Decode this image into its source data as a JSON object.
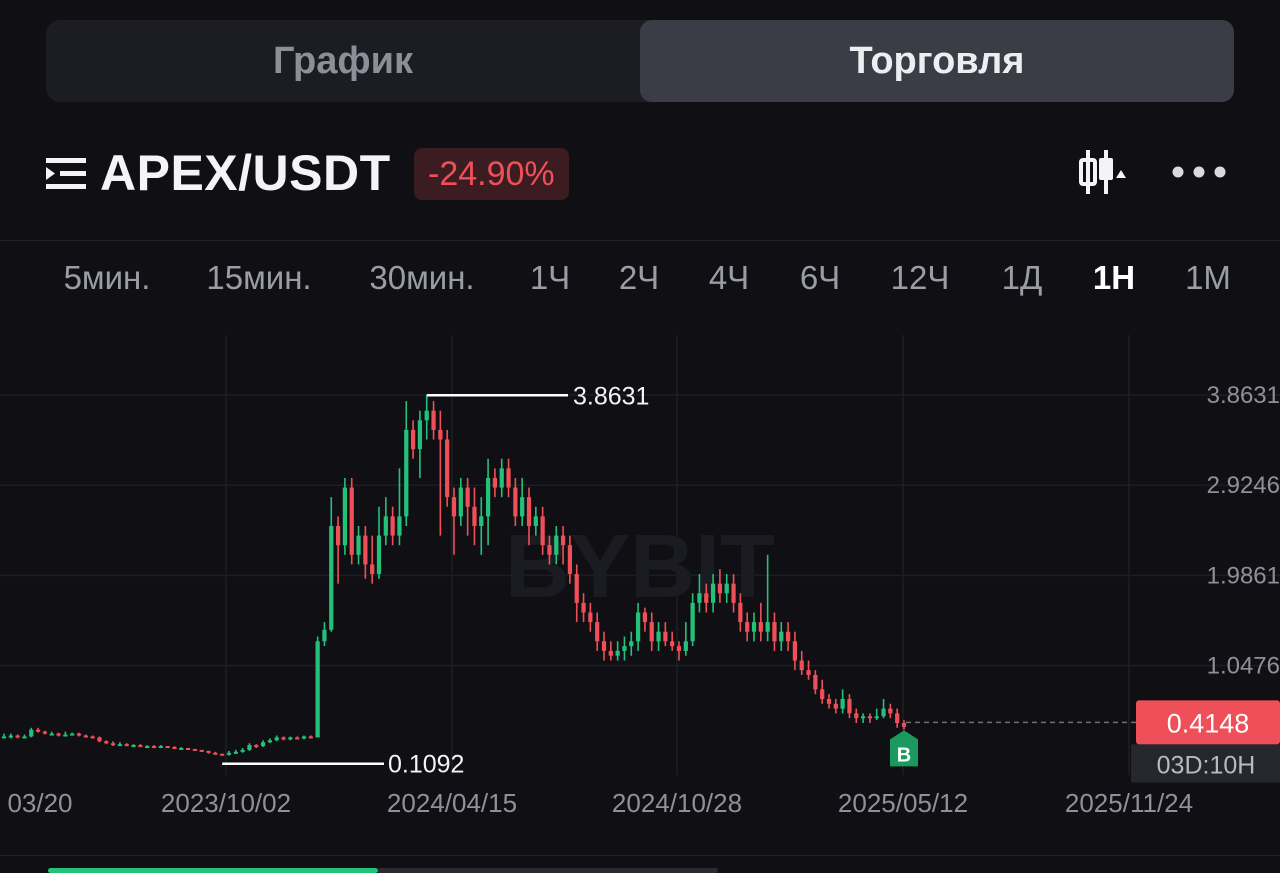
{
  "tabs": [
    {
      "label": "График",
      "active": false
    },
    {
      "label": "Торговля",
      "active": true
    }
  ],
  "header": {
    "pair": "APEX/USDT",
    "change": "-24.90%",
    "icons": [
      "list-menu-icon",
      "candlestick-icon",
      "more-icon"
    ]
  },
  "timeframes": [
    {
      "label": "5мин.",
      "active": false
    },
    {
      "label": "15мин.",
      "active": false
    },
    {
      "label": "30мин.",
      "active": false
    },
    {
      "label": "1Ч",
      "active": false
    },
    {
      "label": "2Ч",
      "active": false
    },
    {
      "label": "4Ч",
      "active": false
    },
    {
      "label": "6Ч",
      "active": false
    },
    {
      "label": "12Ч",
      "active": false
    },
    {
      "label": "1Д",
      "active": false
    },
    {
      "label": "1Н",
      "active": true
    },
    {
      "label": "1М",
      "active": false
    }
  ],
  "chart_data": {
    "type": "candlestick",
    "watermark": "BYBIT",
    "y_ticks": [
      "3.8631",
      "2.9246",
      "1.9861",
      "1.0476"
    ],
    "ylim": [
      0.0,
      4.4
    ],
    "x_ticks": [
      "03/20",
      "2023/10/02",
      "2024/04/15",
      "2024/10/28",
      "2025/05/12",
      "2025/11/24"
    ],
    "high_marker": "3.8631",
    "low_marker": "0.1092",
    "current_price": "0.4148",
    "countdown": "03D:10H",
    "buy_marker": "B",
    "up_color": "#23c17a",
    "down_color": "#ef4f58",
    "candles": [
      [
        0.31,
        0.31,
        0.34,
        0.3
      ],
      [
        0.31,
        0.32,
        0.34,
        0.29
      ],
      [
        0.32,
        0.3,
        0.33,
        0.29
      ],
      [
        0.3,
        0.31,
        0.33,
        0.29
      ],
      [
        0.31,
        0.38,
        0.4,
        0.3
      ],
      [
        0.38,
        0.36,
        0.4,
        0.35
      ],
      [
        0.36,
        0.34,
        0.37,
        0.33
      ],
      [
        0.34,
        0.34,
        0.36,
        0.32
      ],
      [
        0.34,
        0.32,
        0.35,
        0.31
      ],
      [
        0.32,
        0.33,
        0.36,
        0.31
      ],
      [
        0.33,
        0.34,
        0.35,
        0.32
      ],
      [
        0.34,
        0.32,
        0.35,
        0.31
      ],
      [
        0.32,
        0.31,
        0.33,
        0.3
      ],
      [
        0.31,
        0.3,
        0.32,
        0.29
      ],
      [
        0.3,
        0.26,
        0.31,
        0.25
      ],
      [
        0.26,
        0.24,
        0.27,
        0.23
      ],
      [
        0.24,
        0.22,
        0.26,
        0.21
      ],
      [
        0.22,
        0.23,
        0.25,
        0.21
      ],
      [
        0.23,
        0.22,
        0.24,
        0.21
      ],
      [
        0.22,
        0.22,
        0.23,
        0.2
      ],
      [
        0.22,
        0.21,
        0.23,
        0.2
      ],
      [
        0.21,
        0.21,
        0.22,
        0.2
      ],
      [
        0.21,
        0.2,
        0.22,
        0.19
      ],
      [
        0.2,
        0.21,
        0.22,
        0.19
      ],
      [
        0.21,
        0.2,
        0.21,
        0.19
      ],
      [
        0.2,
        0.19,
        0.21,
        0.18
      ],
      [
        0.19,
        0.19,
        0.2,
        0.18
      ],
      [
        0.19,
        0.18,
        0.19,
        0.17
      ],
      [
        0.18,
        0.17,
        0.18,
        0.16
      ],
      [
        0.17,
        0.16,
        0.17,
        0.15
      ],
      [
        0.16,
        0.14,
        0.16,
        0.13
      ],
      [
        0.14,
        0.13,
        0.15,
        0.12
      ],
      [
        0.13,
        0.12,
        0.13,
        0.11
      ],
      [
        0.12,
        0.14,
        0.16,
        0.11
      ],
      [
        0.14,
        0.15,
        0.17,
        0.13
      ],
      [
        0.15,
        0.17,
        0.19,
        0.14
      ],
      [
        0.17,
        0.22,
        0.24,
        0.16
      ],
      [
        0.22,
        0.21,
        0.23,
        0.19
      ],
      [
        0.21,
        0.25,
        0.27,
        0.2
      ],
      [
        0.25,
        0.27,
        0.29,
        0.24
      ],
      [
        0.27,
        0.3,
        0.32,
        0.26
      ],
      [
        0.3,
        0.28,
        0.31,
        0.27
      ],
      [
        0.28,
        0.3,
        0.31,
        0.27
      ],
      [
        0.3,
        0.29,
        0.31,
        0.28
      ],
      [
        0.29,
        0.31,
        0.32,
        0.28
      ],
      [
        0.31,
        0.3,
        0.32,
        0.29
      ],
      [
        0.3,
        1.3,
        1.35,
        0.3
      ],
      [
        1.3,
        1.42,
        1.5,
        1.25
      ],
      [
        1.42,
        2.5,
        2.8,
        1.4
      ],
      [
        2.5,
        2.3,
        2.6,
        1.9
      ],
      [
        2.3,
        2.9,
        3.0,
        2.2
      ],
      [
        2.9,
        2.2,
        3.0,
        2.1
      ],
      [
        2.2,
        2.4,
        2.5,
        2.1
      ],
      [
        2.4,
        2.1,
        2.5,
        1.95
      ],
      [
        2.1,
        2.0,
        2.4,
        1.9
      ],
      [
        2.0,
        2.4,
        2.7,
        1.95
      ],
      [
        2.4,
        2.6,
        2.8,
        2.3
      ],
      [
        2.6,
        2.4,
        2.7,
        2.3
      ],
      [
        2.4,
        2.6,
        3.1,
        2.3
      ],
      [
        2.6,
        3.5,
        3.8,
        2.5
      ],
      [
        3.5,
        3.3,
        3.6,
        3.2
      ],
      [
        3.3,
        3.6,
        3.7,
        3.0
      ],
      [
        3.6,
        3.7,
        3.86,
        3.4
      ],
      [
        3.7,
        3.5,
        3.8,
        3.4
      ],
      [
        3.5,
        3.4,
        3.7,
        2.4
      ],
      [
        3.4,
        2.8,
        3.5,
        2.7
      ],
      [
        2.8,
        2.6,
        2.9,
        2.2
      ],
      [
        2.6,
        2.9,
        3.0,
        2.5
      ],
      [
        2.9,
        2.7,
        3.0,
        2.4
      ],
      [
        2.7,
        2.5,
        2.9,
        2.3
      ],
      [
        2.5,
        2.6,
        2.8,
        2.2
      ],
      [
        2.6,
        3.0,
        3.2,
        2.3
      ],
      [
        3.0,
        2.9,
        3.1,
        2.8
      ],
      [
        2.9,
        3.1,
        3.2,
        2.8
      ],
      [
        3.1,
        2.9,
        3.2,
        2.8
      ],
      [
        2.9,
        2.6,
        3.0,
        2.5
      ],
      [
        2.6,
        2.8,
        3.0,
        2.5
      ],
      [
        2.8,
        2.5,
        2.9,
        2.3
      ],
      [
        2.5,
        2.6,
        2.7,
        2.4
      ],
      [
        2.6,
        2.3,
        2.7,
        2.2
      ],
      [
        2.3,
        2.2,
        2.4,
        2.1
      ],
      [
        2.2,
        2.4,
        2.5,
        2.1
      ],
      [
        2.4,
        2.3,
        2.5,
        2.1
      ],
      [
        2.3,
        2.0,
        2.4,
        1.9
      ],
      [
        2.0,
        1.7,
        2.1,
        1.5
      ],
      [
        1.7,
        1.6,
        1.8,
        1.5
      ],
      [
        1.6,
        1.5,
        1.7,
        1.4
      ],
      [
        1.5,
        1.3,
        1.6,
        1.2
      ],
      [
        1.3,
        1.2,
        1.4,
        1.1
      ],
      [
        1.2,
        1.15,
        1.3,
        1.1
      ],
      [
        1.15,
        1.2,
        1.3,
        1.1
      ],
      [
        1.2,
        1.25,
        1.35,
        1.1
      ],
      [
        1.25,
        1.3,
        1.4,
        1.15
      ],
      [
        1.3,
        1.6,
        1.7,
        1.2
      ],
      [
        1.6,
        1.5,
        1.65,
        1.4
      ],
      [
        1.5,
        1.3,
        1.6,
        1.2
      ],
      [
        1.3,
        1.4,
        1.5,
        1.2
      ],
      [
        1.4,
        1.3,
        1.5,
        1.25
      ],
      [
        1.3,
        1.25,
        1.4,
        1.2
      ],
      [
        1.25,
        1.2,
        1.3,
        1.1
      ],
      [
        1.2,
        1.3,
        1.5,
        1.15
      ],
      [
        1.3,
        1.7,
        1.8,
        1.25
      ],
      [
        1.7,
        1.8,
        2.0,
        1.6
      ],
      [
        1.8,
        1.7,
        1.9,
        1.6
      ],
      [
        1.7,
        1.9,
        2.0,
        1.6
      ],
      [
        1.9,
        1.8,
        2.05,
        1.7
      ],
      [
        1.8,
        1.9,
        2.0,
        1.7
      ],
      [
        1.9,
        1.7,
        2.0,
        1.6
      ],
      [
        1.7,
        1.5,
        1.8,
        1.4
      ],
      [
        1.5,
        1.4,
        1.6,
        1.3
      ],
      [
        1.4,
        1.5,
        1.6,
        1.3
      ],
      [
        1.5,
        1.4,
        1.7,
        1.3
      ],
      [
        1.4,
        1.5,
        2.2,
        1.3
      ],
      [
        1.5,
        1.3,
        1.6,
        1.2
      ],
      [
        1.3,
        1.4,
        1.5,
        1.2
      ],
      [
        1.4,
        1.3,
        1.5,
        1.2
      ],
      [
        1.3,
        1.1,
        1.4,
        1.0
      ],
      [
        1.1,
        1.0,
        1.2,
        0.95
      ],
      [
        1.0,
        0.95,
        1.1,
        0.9
      ],
      [
        0.95,
        0.8,
        1.0,
        0.75
      ],
      [
        0.8,
        0.7,
        0.9,
        0.65
      ],
      [
        0.7,
        0.65,
        0.75,
        0.6
      ],
      [
        0.65,
        0.6,
        0.7,
        0.55
      ],
      [
        0.6,
        0.7,
        0.8,
        0.55
      ],
      [
        0.7,
        0.55,
        0.75,
        0.5
      ],
      [
        0.55,
        0.5,
        0.6,
        0.45
      ],
      [
        0.5,
        0.52,
        0.55,
        0.45
      ],
      [
        0.52,
        0.5,
        0.55,
        0.45
      ],
      [
        0.5,
        0.52,
        0.6,
        0.48
      ],
      [
        0.52,
        0.6,
        0.7,
        0.5
      ],
      [
        0.6,
        0.55,
        0.65,
        0.5
      ],
      [
        0.55,
        0.45,
        0.6,
        0.4
      ],
      [
        0.45,
        0.41,
        0.48,
        0.38
      ]
    ]
  }
}
